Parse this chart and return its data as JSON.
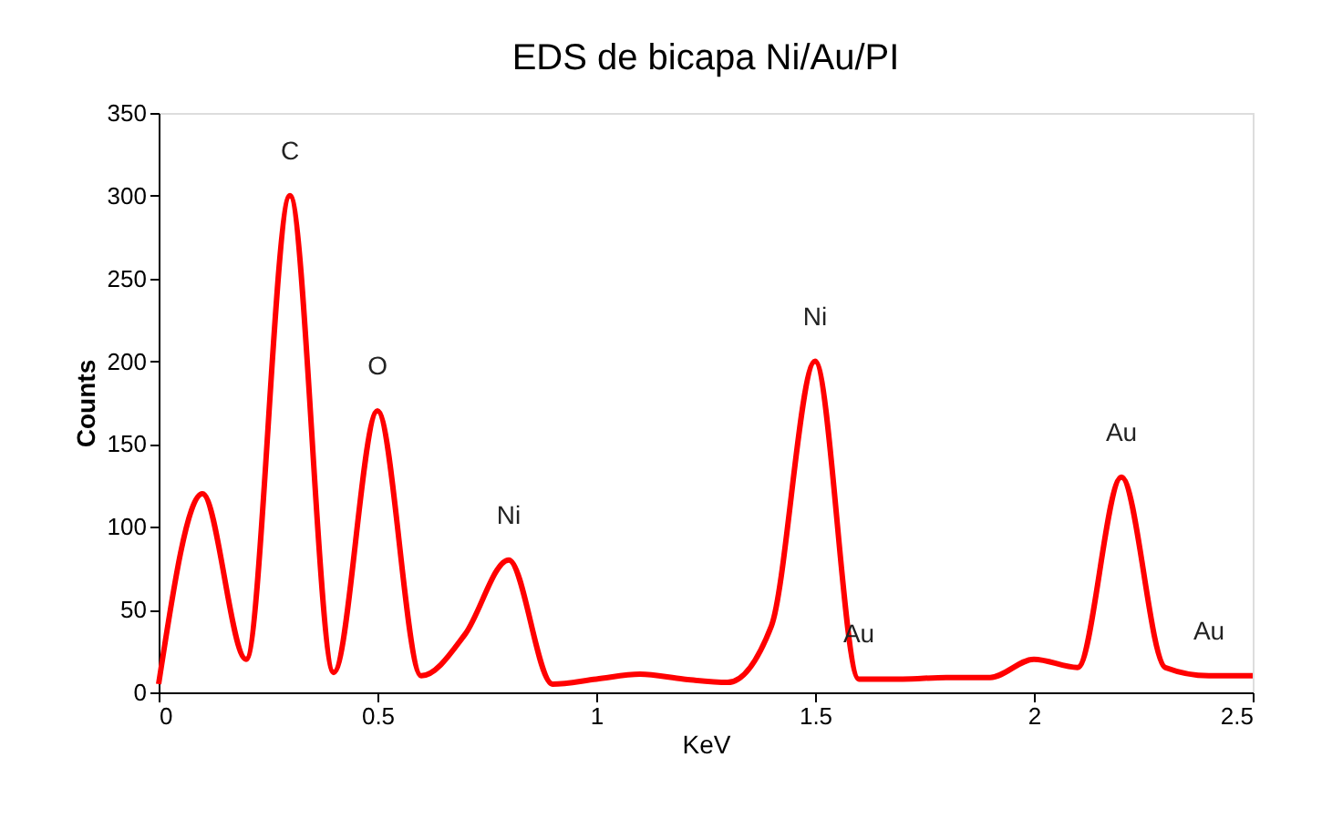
{
  "chart_data": {
    "type": "line",
    "title": "EDS de bicapa Ni/Au/PI",
    "xlabel": "KeV",
    "ylabel": "Counts",
    "x": [
      0,
      0.1,
      0.2,
      0.3,
      0.4,
      0.5,
      0.6,
      0.7,
      0.8,
      0.9,
      1.0,
      1.1,
      1.2,
      1.3,
      1.4,
      1.5,
      1.6,
      1.7,
      1.8,
      1.9,
      2.0,
      2.1,
      2.2,
      2.3,
      2.4,
      2.5
    ],
    "series": [
      {
        "color": "#ff0000",
        "values": [
          5,
          120,
          20,
          300,
          12,
          170,
          10,
          35,
          80,
          5,
          8,
          11,
          8,
          6,
          40,
          200,
          8,
          8,
          9,
          9,
          20,
          15,
          130,
          15,
          10,
          10
        ]
      }
    ],
    "xlim": [
      0,
      2.5
    ],
    "xticks": [
      0,
      0.5,
      1,
      1.5,
      2,
      2.5
    ],
    "ylim": [
      0,
      350
    ],
    "yticks": [
      0,
      50,
      100,
      150,
      200,
      250,
      300,
      350
    ],
    "grid": false,
    "marker": "none",
    "line_style": "solid",
    "annotations": [
      {
        "text": "C",
        "x": 0.3,
        "y": 300
      },
      {
        "text": "O",
        "x": 0.5,
        "y": 170
      },
      {
        "text": "Ni",
        "x": 0.8,
        "y": 80
      },
      {
        "text": "Ni",
        "x": 1.5,
        "y": 200
      },
      {
        "text": "Au",
        "x": 1.6,
        "y": 8
      },
      {
        "text": "Au",
        "x": 2.2,
        "y": 130
      },
      {
        "text": "Au",
        "x": 2.4,
        "y": 10
      }
    ]
  }
}
